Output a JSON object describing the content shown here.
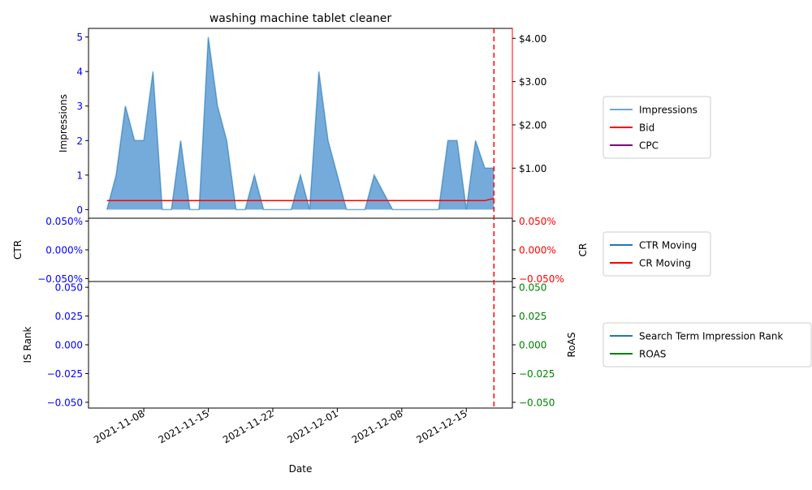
{
  "chart_data": {
    "type": "area",
    "title": "washing machine tablet cleaner",
    "xlabel": "Date",
    "x_tick_labels": [
      "2021-11-08",
      "2021-11-15",
      "2021-11-22",
      "2021-12-01",
      "2021-12-08",
      "2021-12-15"
    ],
    "x_tick_dates": [
      "2021-11-08",
      "2021-11-15",
      "2021-11-22",
      "2021-11-29",
      "2021-12-06",
      "2021-12-13"
    ],
    "x_range": [
      "2021-11-02",
      "2021-12-18"
    ],
    "marker_date": "2021-12-16",
    "marker_color": "#ff0000",
    "panels": [
      {
        "id": "impressions",
        "left_axis_label": "Impressions",
        "left_ticks": [
          "0",
          "1",
          "2",
          "3",
          "4",
          "5"
        ],
        "left_tick_values": [
          0,
          1,
          2,
          3,
          4,
          5
        ],
        "left_range": [
          -0.25,
          5.25
        ],
        "left_tick_color": "#0000ff",
        "right_ticks": [
          "$1.00",
          "$2.00",
          "$3.00",
          "$4.00"
        ],
        "right_tick_values": [
          1,
          2,
          3,
          4
        ],
        "right_range": [
          -0.157,
          4.23
        ],
        "right_tick_color": "#000000",
        "right_spine_color": "#ff0000",
        "legend": [
          {
            "label": "Impressions",
            "color": "#6ea6d9"
          },
          {
            "label": "Bid",
            "color": "#ff0000"
          },
          {
            "label": "CPC",
            "color": "#800080"
          }
        ],
        "series": [
          {
            "name": "Impressions",
            "color": "#1f77b4",
            "fill": "#6ea6d9",
            "dates": [
              "2021-11-04",
              "2021-11-05",
              "2021-11-06",
              "2021-11-07",
              "2021-11-08",
              "2021-11-09",
              "2021-11-10",
              "2021-11-11",
              "2021-11-12",
              "2021-11-13",
              "2021-11-14",
              "2021-11-15",
              "2021-11-16",
              "2021-11-17",
              "2021-11-18",
              "2021-11-19",
              "2021-11-20",
              "2021-11-21",
              "2021-11-22",
              "2021-11-23",
              "2021-11-24",
              "2021-11-25",
              "2021-11-26",
              "2021-11-27",
              "2021-11-28",
              "2021-11-29",
              "2021-11-30",
              "2021-12-01",
              "2021-12-02",
              "2021-12-03",
              "2021-12-04",
              "2021-12-05",
              "2021-12-06",
              "2021-12-07",
              "2021-12-08",
              "2021-12-09",
              "2021-12-10",
              "2021-12-11",
              "2021-12-12",
              "2021-12-13",
              "2021-12-14",
              "2021-12-15",
              "2021-12-16"
            ],
            "values": [
              0,
              1,
              3,
              2,
              2,
              4,
              0,
              0,
              2,
              0,
              0,
              5,
              3,
              2,
              0,
              0,
              1,
              0,
              0,
              0,
              0,
              1,
              0,
              4,
              2,
              1,
              0,
              0,
              0,
              1,
              0.5,
              0,
              0,
              0,
              0,
              0,
              0,
              2,
              2,
              0,
              2,
              1.2,
              1.2
            ]
          },
          {
            "name": "Bid",
            "color": "#ff0000",
            "dates": [
              "2021-11-04",
              "2021-12-15",
              "2021-12-16"
            ],
            "values": [
              0.25,
              0.25,
              0.3
            ]
          }
        ]
      },
      {
        "id": "ctr",
        "left_axis_label": "CTR",
        "right_axis_label": "CR",
        "left_ticks": [
          "0.050%",
          "0.000%",
          "−0.050%"
        ],
        "left_tick_values": [
          0.05,
          0,
          -0.05
        ],
        "right_ticks": [
          "0.050%",
          "0.000%",
          "−0.050%"
        ],
        "right_tick_values": [
          0.05,
          0,
          -0.05
        ],
        "range": [
          -0.055,
          0.055
        ],
        "left_tick_color": "#0000ff",
        "right_tick_color": "#ff0000",
        "legend": [
          {
            "label": "CTR Moving",
            "color": "#1f77b4"
          },
          {
            "label": "CR Moving",
            "color": "#ff0000"
          }
        ]
      },
      {
        "id": "rank",
        "left_axis_label": "IS Rank",
        "right_axis_label": "RoAS",
        "left_ticks": [
          "0.050",
          "0.025",
          "0.000",
          "−0.025",
          "−0.050"
        ],
        "left_tick_values": [
          0.05,
          0.025,
          0,
          -0.025,
          -0.05
        ],
        "right_ticks": [
          "0.050",
          "0.025",
          "0.000",
          "−0.025",
          "−0.050"
        ],
        "right_tick_values": [
          0.05,
          0.025,
          0,
          -0.025,
          -0.05
        ],
        "range": [
          -0.055,
          0.055
        ],
        "left_tick_color": "#0000ff",
        "right_tick_color": "#008000",
        "legend": [
          {
            "label": "Search Term Impression Rank",
            "color": "#1f77b4"
          },
          {
            "label": "ROAS",
            "color": "#008000"
          }
        ]
      }
    ]
  }
}
